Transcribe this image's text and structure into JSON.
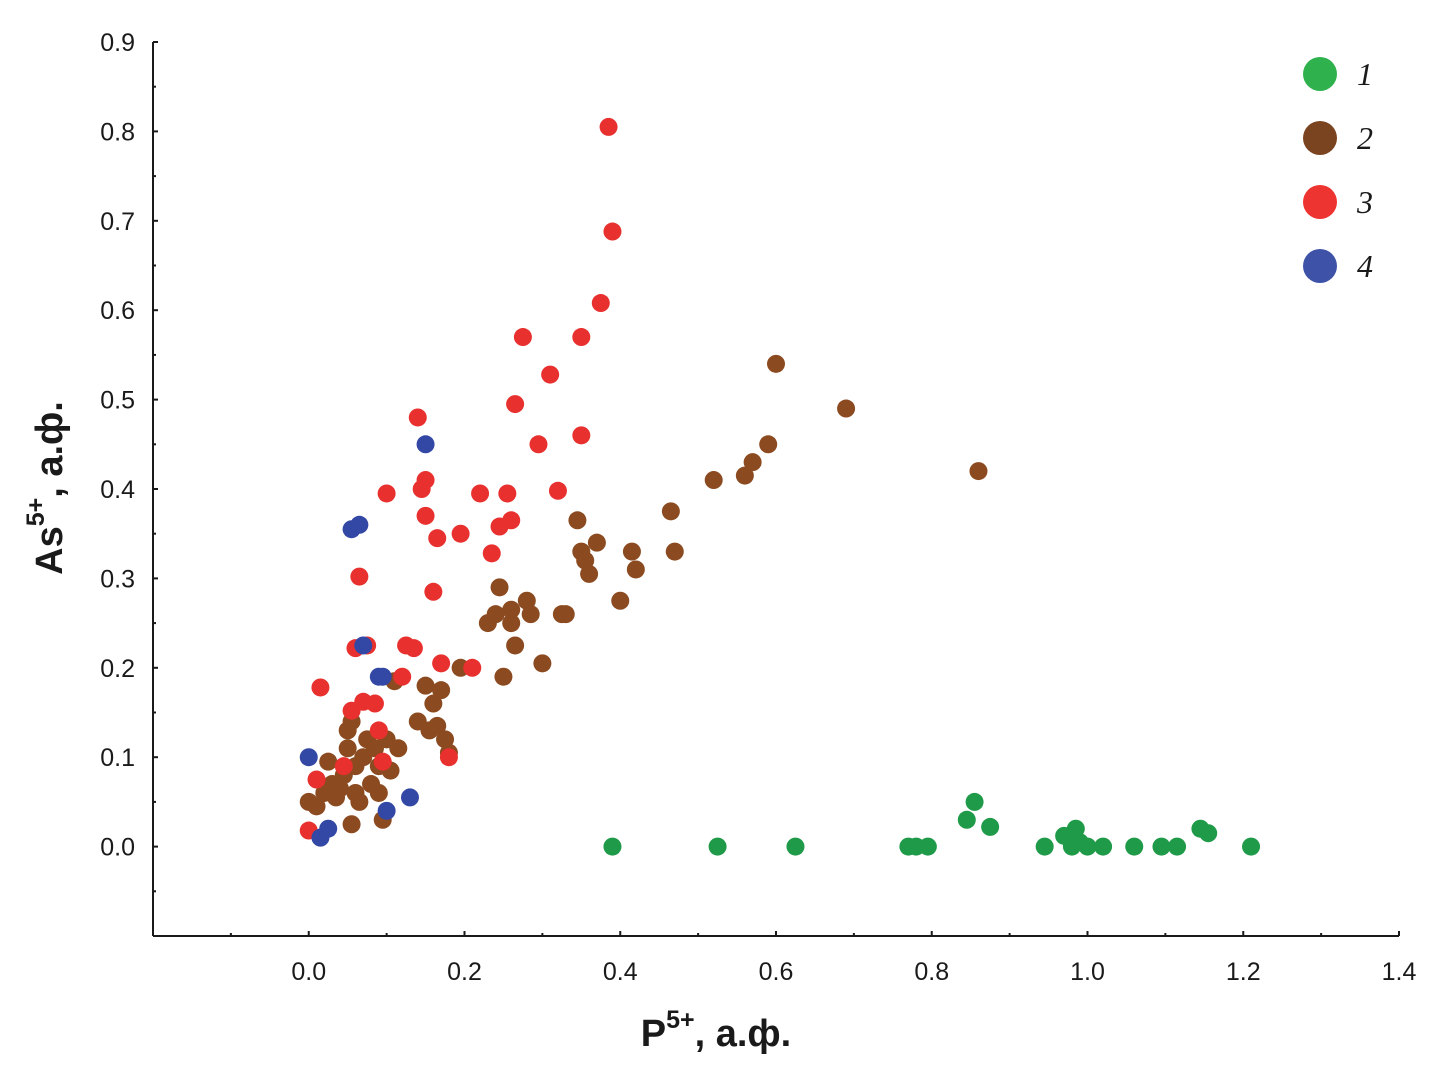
{
  "chart_data": {
    "type": "scatter",
    "xlabel": "P",
    "xlabel_sup": "5+",
    "xlabel_suffix": ", а.ф.",
    "ylabel": "As",
    "ylabel_sup": "5+",
    "ylabel_suffix": ", а.ф.",
    "xlim": [
      -0.2,
      1.4
    ],
    "ylim": [
      -0.1,
      0.9
    ],
    "xticks": [
      "0.0",
      "0.2",
      "0.4",
      "0.6",
      "0.8",
      "1.0",
      "1.2",
      "1.4"
    ],
    "yticks": [
      "0.0",
      "0.1",
      "0.2",
      "0.3",
      "0.4",
      "0.5",
      "0.6",
      "0.7",
      "0.8",
      "0.9"
    ],
    "grid": false,
    "legend_position": "top-right",
    "series": [
      {
        "name": "1",
        "color": "#1e9a48",
        "legend_color": "#2fb24e",
        "points": [
          [
            0.39,
            0.0
          ],
          [
            0.525,
            0.0
          ],
          [
            0.625,
            0.0
          ],
          [
            0.77,
            0.0
          ],
          [
            0.78,
            0.0
          ],
          [
            0.795,
            0.0
          ],
          [
            0.845,
            0.03
          ],
          [
            0.855,
            0.05
          ],
          [
            0.875,
            0.022
          ],
          [
            0.945,
            0.0
          ],
          [
            0.97,
            0.012
          ],
          [
            0.98,
            0.0
          ],
          [
            0.985,
            0.02
          ],
          [
            0.99,
            0.005
          ],
          [
            1.0,
            0.0
          ],
          [
            1.02,
            0.0
          ],
          [
            1.06,
            0.0
          ],
          [
            1.095,
            0.0
          ],
          [
            1.115,
            0.0
          ],
          [
            1.145,
            0.02
          ],
          [
            1.155,
            0.015
          ],
          [
            1.21,
            0.0
          ]
        ]
      },
      {
        "name": "2",
        "color": "#8b4a1f",
        "legend_color": "#7a4421",
        "points": [
          [
            0.0,
            0.05
          ],
          [
            0.01,
            0.045
          ],
          [
            0.02,
            0.06
          ],
          [
            0.025,
            0.095
          ],
          [
            0.03,
            0.07
          ],
          [
            0.035,
            0.055
          ],
          [
            0.04,
            0.065
          ],
          [
            0.045,
            0.08
          ],
          [
            0.05,
            0.11
          ],
          [
            0.05,
            0.13
          ],
          [
            0.055,
            0.025
          ],
          [
            0.055,
            0.14
          ],
          [
            0.06,
            0.06
          ],
          [
            0.06,
            0.09
          ],
          [
            0.065,
            0.05
          ],
          [
            0.07,
            0.1
          ],
          [
            0.075,
            0.12
          ],
          [
            0.08,
            0.07
          ],
          [
            0.085,
            0.11
          ],
          [
            0.09,
            0.06
          ],
          [
            0.09,
            0.09
          ],
          [
            0.095,
            0.03
          ],
          [
            0.1,
            0.12
          ],
          [
            0.105,
            0.085
          ],
          [
            0.11,
            0.185
          ],
          [
            0.115,
            0.11
          ],
          [
            0.14,
            0.14
          ],
          [
            0.15,
            0.18
          ],
          [
            0.155,
            0.13
          ],
          [
            0.16,
            0.16
          ],
          [
            0.165,
            0.135
          ],
          [
            0.17,
            0.175
          ],
          [
            0.175,
            0.12
          ],
          [
            0.18,
            0.105
          ],
          [
            0.195,
            0.2
          ],
          [
            0.23,
            0.25
          ],
          [
            0.24,
            0.26
          ],
          [
            0.245,
            0.29
          ],
          [
            0.25,
            0.19
          ],
          [
            0.26,
            0.25
          ],
          [
            0.26,
            0.265
          ],
          [
            0.265,
            0.225
          ],
          [
            0.28,
            0.275
          ],
          [
            0.285,
            0.26
          ],
          [
            0.3,
            0.205
          ],
          [
            0.325,
            0.26
          ],
          [
            0.33,
            0.26
          ],
          [
            0.345,
            0.365
          ],
          [
            0.35,
            0.33
          ],
          [
            0.355,
            0.32
          ],
          [
            0.36,
            0.305
          ],
          [
            0.37,
            0.34
          ],
          [
            0.4,
            0.275
          ],
          [
            0.415,
            0.33
          ],
          [
            0.42,
            0.31
          ],
          [
            0.465,
            0.375
          ],
          [
            0.47,
            0.33
          ],
          [
            0.52,
            0.41
          ],
          [
            0.56,
            0.415
          ],
          [
            0.57,
            0.43
          ],
          [
            0.59,
            0.45
          ],
          [
            0.6,
            0.54
          ],
          [
            0.69,
            0.49
          ],
          [
            0.86,
            0.42
          ]
        ]
      },
      {
        "name": "3",
        "color": "#e8312f",
        "legend_color": "#ee3431",
        "points": [
          [
            0.0,
            0.018
          ],
          [
            0.01,
            0.075
          ],
          [
            0.015,
            0.178
          ],
          [
            0.045,
            0.09
          ],
          [
            0.055,
            0.152
          ],
          [
            0.06,
            0.222
          ],
          [
            0.065,
            0.302
          ],
          [
            0.07,
            0.162
          ],
          [
            0.075,
            0.225
          ],
          [
            0.085,
            0.16
          ],
          [
            0.09,
            0.13
          ],
          [
            0.095,
            0.095
          ],
          [
            0.1,
            0.395
          ],
          [
            0.12,
            0.19
          ],
          [
            0.125,
            0.225
          ],
          [
            0.135,
            0.222
          ],
          [
            0.14,
            0.48
          ],
          [
            0.145,
            0.4
          ],
          [
            0.15,
            0.41
          ],
          [
            0.15,
            0.37
          ],
          [
            0.16,
            0.285
          ],
          [
            0.165,
            0.345
          ],
          [
            0.17,
            0.205
          ],
          [
            0.18,
            0.1
          ],
          [
            0.195,
            0.35
          ],
          [
            0.21,
            0.2
          ],
          [
            0.22,
            0.395
          ],
          [
            0.235,
            0.328
          ],
          [
            0.245,
            0.358
          ],
          [
            0.255,
            0.395
          ],
          [
            0.26,
            0.365
          ],
          [
            0.265,
            0.495
          ],
          [
            0.275,
            0.57
          ],
          [
            0.295,
            0.45
          ],
          [
            0.31,
            0.528
          ],
          [
            0.32,
            0.398
          ],
          [
            0.35,
            0.57
          ],
          [
            0.35,
            0.46
          ],
          [
            0.375,
            0.608
          ],
          [
            0.385,
            0.805
          ],
          [
            0.39,
            0.688
          ]
        ]
      },
      {
        "name": "4",
        "color": "#3347a4",
        "legend_color": "#3e53a8",
        "points": [
          [
            0.0,
            0.1
          ],
          [
            0.015,
            0.01
          ],
          [
            0.025,
            0.02
          ],
          [
            0.055,
            0.355
          ],
          [
            0.065,
            0.36
          ],
          [
            0.07,
            0.225
          ],
          [
            0.09,
            0.19
          ],
          [
            0.095,
            0.19
          ],
          [
            0.1,
            0.04
          ],
          [
            0.13,
            0.055
          ],
          [
            0.15,
            0.45
          ]
        ]
      }
    ]
  }
}
